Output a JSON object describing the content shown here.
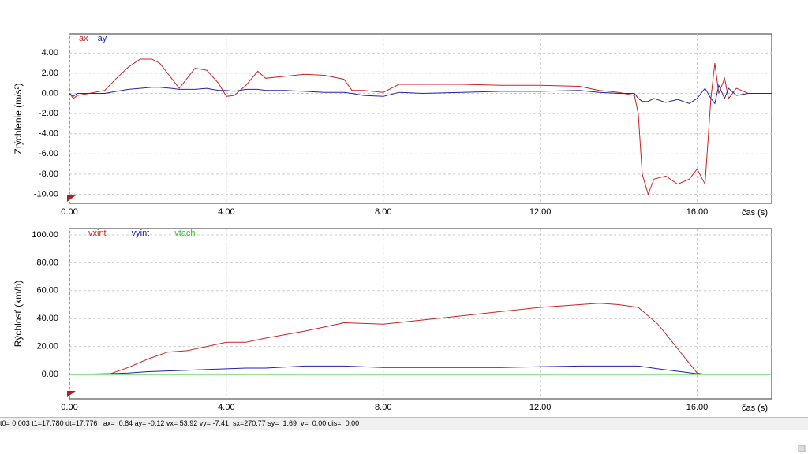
{
  "chart_data": [
    {
      "type": "line",
      "ylabel": "Zrýchlenie (m/s²)",
      "xlabel": "čas (s)",
      "xlim": [
        0,
        17.9
      ],
      "ylim": [
        -10.9,
        5.9
      ],
      "xticks": [
        {
          "value": 0,
          "label": "0.00"
        },
        {
          "value": 4,
          "label": "4.00"
        },
        {
          "value": 8,
          "label": "8.00"
        },
        {
          "value": 12,
          "label": "12.00"
        },
        {
          "value": 16,
          "label": "16.00"
        }
      ],
      "yticks": [
        {
          "value": -10,
          "label": "-10.00"
        },
        {
          "value": -8,
          "label": "-8.00"
        },
        {
          "value": -6,
          "label": "-6.00"
        },
        {
          "value": -4,
          "label": "-4.00"
        },
        {
          "value": -2,
          "label": "-2.00"
        },
        {
          "value": 0,
          "label": "0.00"
        },
        {
          "value": 2,
          "label": "2.00"
        },
        {
          "value": 4,
          "label": "4.00"
        }
      ],
      "grid": true,
      "x": [
        0,
        0.1,
        0.2,
        0.5,
        0.9,
        1.2,
        1.5,
        1.8,
        2.1,
        2.3,
        2.6,
        2.8,
        3.0,
        3.2,
        3.5,
        3.8,
        4.0,
        4.2,
        4.5,
        4.8,
        5.0,
        5.5,
        6.0,
        6.5,
        7.0,
        7.2,
        7.5,
        8.0,
        8.4,
        9.0,
        10.0,
        11.0,
        12.0,
        13.0,
        13.5,
        14.0,
        14.4,
        14.5,
        14.6,
        14.75,
        14.9,
        15.2,
        15.5,
        15.8,
        16.0,
        16.2,
        16.35,
        16.45,
        16.55,
        16.7,
        16.8,
        17.0,
        17.3,
        17.9
      ],
      "series": [
        {
          "name": "ax",
          "color": "#cc2222",
          "values": [
            0,
            -0.5,
            -0.2,
            0,
            0.3,
            1.5,
            2.6,
            3.4,
            3.4,
            3.0,
            1.5,
            0.5,
            1.5,
            2.5,
            2.3,
            1.0,
            -0.3,
            -0.2,
            0.8,
            2.2,
            1.5,
            1.7,
            1.9,
            1.8,
            1.4,
            0.3,
            0.3,
            0.1,
            0.9,
            0.9,
            0.9,
            0.8,
            0.8,
            0.7,
            0.3,
            0.1,
            -0.2,
            -2.0,
            -8.0,
            -10.0,
            -8.5,
            -8.2,
            -9.0,
            -8.5,
            -7.5,
            -9.0,
            -0.5,
            3.0,
            0.0,
            1.5,
            -0.5,
            0.5,
            0.0,
            0.0
          ]
        },
        {
          "name": "ay",
          "color": "#2222aa",
          "values": [
            0,
            -0.3,
            0,
            0,
            0,
            0.2,
            0.4,
            0.5,
            0.6,
            0.6,
            0.5,
            0.4,
            0.4,
            0.4,
            0.5,
            0.3,
            0.3,
            0.2,
            0.4,
            0.4,
            0.3,
            0.3,
            0.2,
            0.1,
            0.1,
            0,
            -0.2,
            -0.3,
            0.1,
            0,
            0.1,
            0.2,
            0.2,
            0.3,
            0.1,
            0,
            0,
            -0.5,
            -0.8,
            -0.8,
            -0.5,
            -0.9,
            -0.6,
            -1.0,
            -0.5,
            0.5,
            -0.5,
            -1.0,
            0.8,
            -0.5,
            0.5,
            -0.2,
            0,
            0
          ]
        }
      ]
    },
    {
      "type": "line",
      "ylabel": "Rýchlosť (km/h)",
      "xlabel": "čas (s)",
      "xlim": [
        0,
        17.9
      ],
      "ylim": [
        -17.5,
        104.5
      ],
      "xticks": [
        {
          "value": 0,
          "label": "0.00"
        },
        {
          "value": 4,
          "label": "4.00"
        },
        {
          "value": 8,
          "label": "8.00"
        },
        {
          "value": 12,
          "label": "12.00"
        },
        {
          "value": 16,
          "label": "16.00"
        }
      ],
      "yticks": [
        {
          "value": 0,
          "label": "0.00"
        },
        {
          "value": 20,
          "label": "20.00"
        },
        {
          "value": 40,
          "label": "40.00"
        },
        {
          "value": 60,
          "label": "60.00"
        },
        {
          "value": 80,
          "label": "80.00"
        },
        {
          "value": 100,
          "label": "100.00"
        }
      ],
      "grid": true,
      "x": [
        0,
        1,
        1.5,
        2,
        2.5,
        3,
        3.5,
        4,
        4.5,
        5,
        6,
        7,
        8,
        9,
        10,
        11,
        12,
        13,
        13.5,
        14,
        14.5,
        15,
        16,
        16.2,
        16.8,
        17.9
      ],
      "series": [
        {
          "name": "vxint",
          "color": "#cc2222",
          "values": [
            0,
            0,
            5,
            11,
            16,
            17,
            20,
            23,
            23,
            26,
            31,
            37,
            36,
            39,
            42,
            45,
            48,
            50,
            51,
            50,
            48,
            36,
            1,
            0,
            null,
            null
          ]
        },
        {
          "name": "vyint",
          "color": "#2222aa",
          "values": [
            0,
            0.5,
            1,
            2,
            2.5,
            3,
            3.5,
            4,
            4.5,
            4.5,
            6,
            6,
            5,
            5,
            5,
            5,
            5.5,
            6,
            6,
            6,
            6,
            4,
            0.5,
            0,
            0,
            null
          ]
        },
        {
          "name": "vtach",
          "color": "#22cc22",
          "values": [
            0,
            0,
            0,
            0,
            0,
            0,
            0,
            0,
            0,
            0,
            0,
            0,
            0,
            0,
            0,
            0,
            0,
            0,
            0,
            0,
            0,
            0,
            0,
            0,
            0,
            0
          ]
        }
      ]
    }
  ],
  "status_bar": {
    "text": "t0= 0.003 t1=17.780 dt=17.776   ax=  0.84 ay= -0.12 vx= 53.92 vy= -7.41  sx=270.77 sy=  1.69  v=  0.00 dis=  0.00"
  }
}
